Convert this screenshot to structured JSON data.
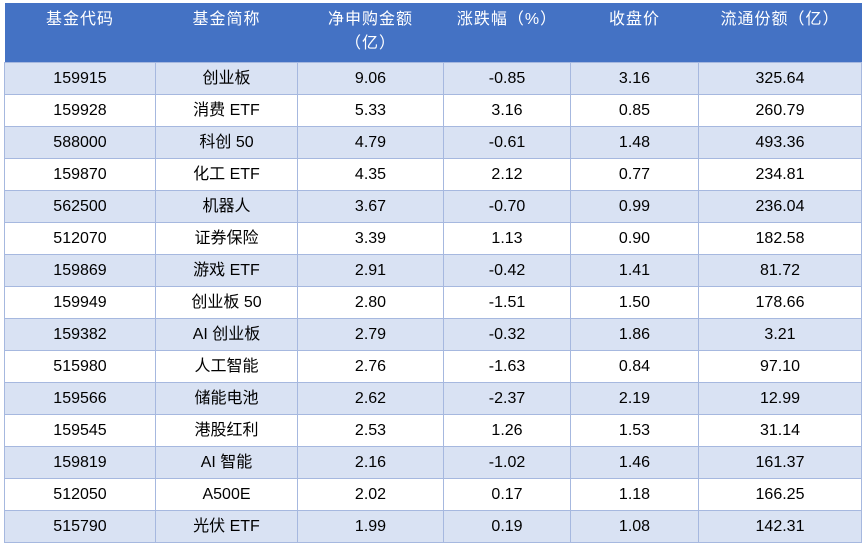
{
  "colors": {
    "header_bg": "#4472C4",
    "header_text": "#FFFFFF",
    "band_row_bg": "#D9E2F3",
    "plain_row_bg": "#FFFFFF",
    "grid_border": "#A6B8DF",
    "body_text": "#000000"
  },
  "table": {
    "columns": [
      {
        "key": "code",
        "label": "基金代码"
      },
      {
        "key": "name",
        "label": "基金简称"
      },
      {
        "key": "net",
        "label": "净申购金额",
        "label2": "（亿）"
      },
      {
        "key": "chg",
        "label": "涨跌幅（%）"
      },
      {
        "key": "close",
        "label": "收盘价"
      },
      {
        "key": "shares",
        "label": "流通份额（亿）"
      }
    ],
    "rows": [
      [
        "159915",
        "创业板",
        "9.06",
        "-0.85",
        "3.16",
        "325.64"
      ],
      [
        "159928",
        "消费 ETF",
        "5.33",
        "3.16",
        "0.85",
        "260.79"
      ],
      [
        "588000",
        "科创 50",
        "4.79",
        "-0.61",
        "1.48",
        "493.36"
      ],
      [
        "159870",
        "化工 ETF",
        "4.35",
        "2.12",
        "0.77",
        "234.81"
      ],
      [
        "562500",
        "机器人",
        "3.67",
        "-0.70",
        "0.99",
        "236.04"
      ],
      [
        "512070",
        "证券保险",
        "3.39",
        "1.13",
        "0.90",
        "182.58"
      ],
      [
        "159869",
        "游戏 ETF",
        "2.91",
        "-0.42",
        "1.41",
        "81.72"
      ],
      [
        "159949",
        "创业板 50",
        "2.80",
        "-1.51",
        "1.50",
        "178.66"
      ],
      [
        "159382",
        "AI 创业板",
        "2.79",
        "-0.32",
        "1.86",
        "3.21"
      ],
      [
        "515980",
        "人工智能",
        "2.76",
        "-1.63",
        "0.84",
        "97.10"
      ],
      [
        "159566",
        "储能电池",
        "2.62",
        "-2.37",
        "2.19",
        "12.99"
      ],
      [
        "159545",
        "港股红利",
        "2.53",
        "1.26",
        "1.53",
        "31.14"
      ],
      [
        "159819",
        "AI 智能",
        "2.16",
        "-1.02",
        "1.46",
        "161.37"
      ],
      [
        "512050",
        "A500E",
        "2.02",
        "0.17",
        "1.18",
        "166.25"
      ],
      [
        "515790",
        "光伏 ETF",
        "1.99",
        "0.19",
        "1.08",
        "142.31"
      ]
    ]
  }
}
